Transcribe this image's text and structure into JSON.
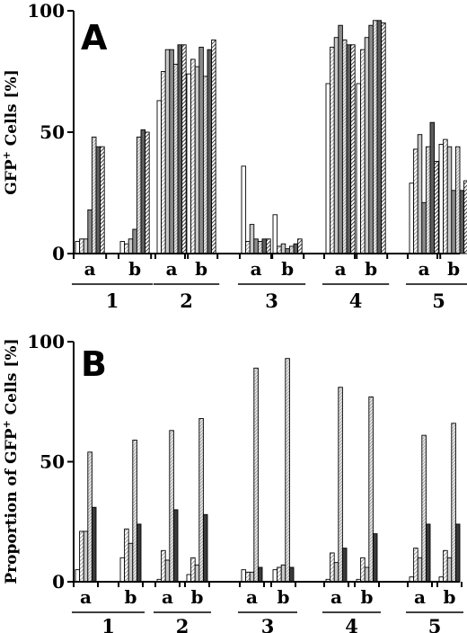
{
  "chart_data": [
    {
      "type": "bar",
      "panel_label": "A",
      "ylabel": "GFP⁺ Cells [%]",
      "ylabel_parts": {
        "main": "GFP",
        "sup": "+",
        "rest": " Cells [%]"
      },
      "ylim": [
        0,
        100
      ],
      "yticks": [
        0,
        50,
        100
      ],
      "groups": [
        "1",
        "2",
        "3",
        "4",
        "5"
      ],
      "subgroups": [
        "a",
        "b"
      ],
      "series": [
        {
          "style": "white",
          "values": [
            [
              5,
              5
            ],
            [
              63,
              74
            ],
            [
              36,
              16
            ],
            [
              70,
              70
            ],
            [
              29,
              45
            ]
          ]
        },
        {
          "style": "hatch-diag",
          "values": [
            [
              6,
              4
            ],
            [
              75,
              80
            ],
            [
              5,
              3
            ],
            [
              85,
              84
            ],
            [
              43,
              47
            ]
          ]
        },
        {
          "style": "light-gray",
          "values": [
            [
              6,
              6
            ],
            [
              84,
              77
            ],
            [
              12,
              4
            ],
            [
              89,
              89
            ],
            [
              49,
              44
            ]
          ]
        },
        {
          "style": "gray",
          "values": [
            [
              18,
              10
            ],
            [
              84,
              85
            ],
            [
              6,
              2
            ],
            [
              94,
              94
            ],
            [
              21,
              26
            ]
          ]
        },
        {
          "style": "hatch-dense",
          "values": [
            [
              48,
              48
            ],
            [
              78,
              73
            ],
            [
              5,
              3
            ],
            [
              88,
              96
            ],
            [
              44,
              44
            ]
          ]
        },
        {
          "style": "dark-gray",
          "values": [
            [
              44,
              51
            ],
            [
              86,
              84
            ],
            [
              6,
              4
            ],
            [
              86,
              96
            ],
            [
              54,
              26
            ]
          ]
        },
        {
          "style": "hatch-black",
          "values": [
            [
              44,
              50
            ],
            [
              86,
              88
            ],
            [
              6,
              6
            ],
            [
              86,
              95
            ],
            [
              38,
              30
            ]
          ]
        }
      ]
    },
    {
      "type": "bar",
      "panel_label": "B",
      "ylabel": "Proportion of GFP⁺ Cells [%]",
      "ylabel_parts": {
        "main": "Proportion of GFP",
        "sup": "+",
        "rest": " Cells [%]"
      },
      "ylim": [
        0,
        100
      ],
      "yticks": [
        0,
        50,
        100
      ],
      "groups": [
        "1",
        "2",
        "3",
        "4",
        "5"
      ],
      "subgroups": [
        "a",
        "b"
      ],
      "series": [
        {
          "style": "white",
          "values": [
            [
              5,
              10
            ],
            [
              1,
              3
            ],
            [
              5,
              5
            ],
            [
              1,
              1
            ],
            [
              2,
              2
            ]
          ]
        },
        {
          "style": "hatch-diag",
          "values": [
            [
              21,
              22
            ],
            [
              13,
              10
            ],
            [
              4,
              6
            ],
            [
              12,
              10
            ],
            [
              14,
              13
            ]
          ]
        },
        {
          "style": "light-gray",
          "values": [
            [
              21,
              16
            ],
            [
              9,
              7
            ],
            [
              4,
              7
            ],
            [
              8,
              6
            ],
            [
              10,
              10
            ]
          ]
        },
        {
          "style": "hatch-dense",
          "values": [
            [
              54,
              59
            ],
            [
              63,
              68
            ],
            [
              89,
              93
            ],
            [
              81,
              77
            ],
            [
              61,
              66
            ]
          ]
        },
        {
          "style": "dark",
          "values": [
            [
              31,
              24
            ],
            [
              30,
              28
            ],
            [
              6,
              6
            ],
            [
              14,
              20
            ],
            [
              24,
              24
            ]
          ]
        }
      ]
    }
  ]
}
